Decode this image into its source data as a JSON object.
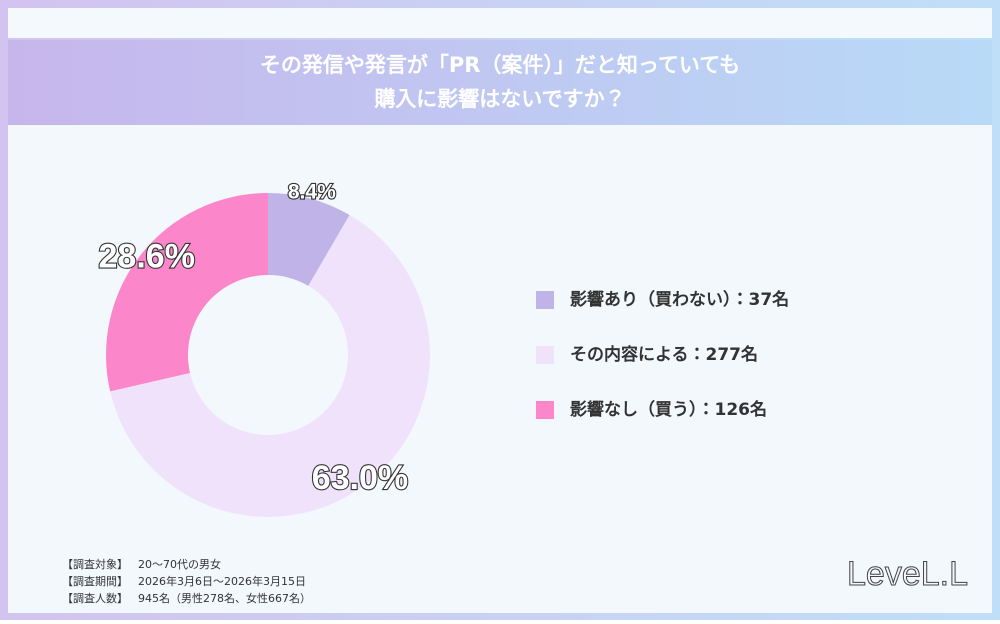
{
  "chart_data": {
    "type": "pie",
    "donut": true,
    "title": [
      "その発信や発言が「PR（案件）」だと知っていても",
      "購入に影響はないですか？"
    ],
    "categories": [
      "影響あり（買わない）：37名",
      "その内容による：277名",
      "影響なし（買う）：126名"
    ],
    "values": [
      8.4,
      63.0,
      28.6
    ],
    "value_labels": [
      "8.4%",
      "63.0%",
      "28.6%"
    ],
    "colors": [
      "#bfb3e8",
      "#f1e2fb",
      "#fb86c9"
    ]
  },
  "notes": [
    {
      "label": "【調査対象】",
      "text": "20～70代の男女"
    },
    {
      "label": "【調査期間】",
      "text": "2026年3月6日～2026年3月15日"
    },
    {
      "label": "【調査人数】",
      "text": "945名（男性278名、女性667名）"
    }
  ],
  "logo": "LeveL.L"
}
